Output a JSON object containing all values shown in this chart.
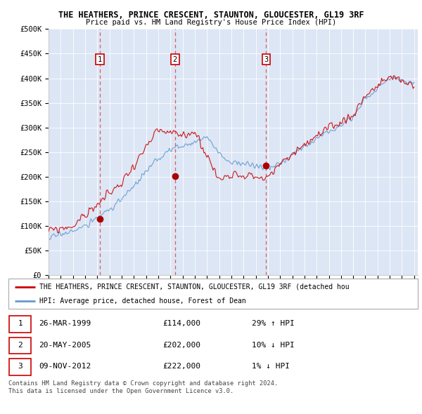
{
  "title": "THE HEATHERS, PRINCE CRESCENT, STAUNTON, GLOUCESTER, GL19 3RF",
  "subtitle": "Price paid vs. HM Land Registry's House Price Index (HPI)",
  "background_color": "#ffffff",
  "plot_bg_color": "#dce6f5",
  "grid_color": "#ffffff",
  "ylim": [
    0,
    500000
  ],
  "yticks": [
    0,
    50000,
    100000,
    150000,
    200000,
    250000,
    300000,
    350000,
    400000,
    450000,
    500000
  ],
  "ytick_labels": [
    "£0",
    "£50K",
    "£100K",
    "£150K",
    "£200K",
    "£250K",
    "£300K",
    "£350K",
    "£400K",
    "£450K",
    "£500K"
  ],
  "x_start_year": 1995,
  "x_end_year": 2025,
  "sale_years": [
    1999.22,
    2005.38,
    2012.86
  ],
  "sale_prices": [
    114000,
    202000,
    222000
  ],
  "sale_labels": [
    "1",
    "2",
    "3"
  ],
  "vline_color": "#dd4444",
  "dot_color": "#aa0000",
  "legend_line1": "THE HEATHERS, PRINCE CRESCENT, STAUNTON, GLOUCESTER, GL19 3RF (detached hou",
  "legend_line2": "HPI: Average price, detached house, Forest of Dean",
  "legend_line1_color": "#cc0000",
  "legend_line2_color": "#6699cc",
  "table_entries": [
    {
      "label": "1",
      "date": "26-MAR-1999",
      "price": "£114,000",
      "hpi": "29% ↑ HPI"
    },
    {
      "label": "2",
      "date": "20-MAY-2005",
      "price": "£202,000",
      "hpi": "10% ↓ HPI"
    },
    {
      "label": "3",
      "date": "09-NOV-2012",
      "price": "£222,000",
      "hpi": "1% ↓ HPI"
    }
  ],
  "footer": "Contains HM Land Registry data © Crown copyright and database right 2024.\nThis data is licensed under the Open Government Licence v3.0.",
  "red_line_color": "#cc0000",
  "blue_line_color": "#6699cc"
}
